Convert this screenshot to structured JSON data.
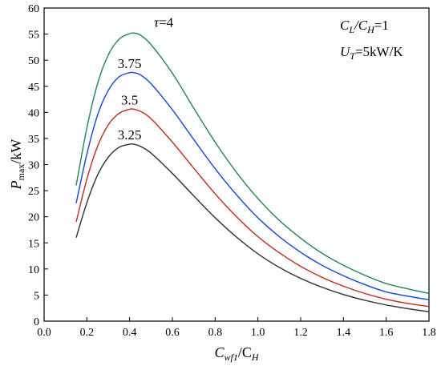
{
  "chart_data": {
    "type": "line",
    "xlabel": {
      "main": "C",
      "sub": "wf1",
      "rest": "/C",
      "rest_sub": "H"
    },
    "ylabel": {
      "main": "P",
      "sub": "max",
      "rest": "/kW"
    },
    "xlim": [
      0.0,
      1.8
    ],
    "ylim": [
      0,
      60
    ],
    "xticks": [
      "0.0",
      "0.2",
      "0.4",
      "0.6",
      "0.8",
      "1.0",
      "1.2",
      "1.4",
      "1.6",
      "1.8"
    ],
    "yticks": [
      "0",
      "5",
      "10",
      "15",
      "20",
      "25",
      "30",
      "35",
      "40",
      "45",
      "50",
      "55",
      "60"
    ],
    "grid": false,
    "annotations": {
      "ratio": {
        "main": "C",
        "sub": "L",
        "mid": "/C",
        "sub2": "H",
        "rest": "=1"
      },
      "ut": {
        "main": "U",
        "sub": "T",
        "rest": "=5kW/K"
      }
    },
    "series": [
      {
        "name": "τ=4",
        "label_prefix": "τ",
        "label_rest": "=4",
        "color": "#2e8b57",
        "x": [
          0.15,
          0.2,
          0.25,
          0.3,
          0.35,
          0.4,
          0.42,
          0.45,
          0.5,
          0.6,
          0.7,
          0.8,
          0.9,
          1.0,
          1.1,
          1.2,
          1.3,
          1.4,
          1.5,
          1.6,
          1.7,
          1.8
        ],
        "y": [
          26.0,
          37.0,
          45.5,
          51.0,
          54.0,
          55.1,
          55.2,
          54.8,
          53.0,
          47.5,
          40.8,
          34.3,
          28.5,
          23.5,
          19.3,
          15.9,
          13.0,
          10.7,
          8.8,
          7.2,
          6.2,
          5.3
        ]
      },
      {
        "name": "3.75",
        "label_prefix": "",
        "label_rest": "3.75",
        "color": "#1f4fd6",
        "x": [
          0.15,
          0.2,
          0.25,
          0.3,
          0.35,
          0.4,
          0.42,
          0.45,
          0.5,
          0.6,
          0.7,
          0.8,
          0.9,
          1.0,
          1.1,
          1.2,
          1.3,
          1.4,
          1.5,
          1.6,
          1.7,
          1.8
        ],
        "y": [
          22.6,
          32.0,
          39.5,
          44.2,
          46.8,
          47.6,
          47.6,
          47.2,
          45.5,
          40.5,
          34.8,
          29.2,
          24.2,
          19.8,
          16.2,
          13.2,
          10.7,
          8.7,
          7.0,
          5.6,
          4.8,
          4.1
        ]
      },
      {
        "name": "3.5",
        "label_prefix": "",
        "label_rest": "3.5",
        "color": "#c0392b",
        "x": [
          0.15,
          0.2,
          0.25,
          0.3,
          0.35,
          0.4,
          0.42,
          0.45,
          0.5,
          0.6,
          0.7,
          0.8,
          0.9,
          1.0,
          1.1,
          1.2,
          1.3,
          1.4,
          1.5,
          1.6,
          1.7,
          1.8
        ],
        "y": [
          19.0,
          27.2,
          33.5,
          37.6,
          39.8,
          40.6,
          40.6,
          40.2,
          38.8,
          34.3,
          29.3,
          24.4,
          20.0,
          16.2,
          13.1,
          10.5,
          8.4,
          6.7,
          5.3,
          4.2,
          3.4,
          2.8
        ]
      },
      {
        "name": "3.25",
        "label_prefix": "",
        "label_rest": "3.25",
        "color": "#3a3a3a",
        "x": [
          0.15,
          0.2,
          0.25,
          0.3,
          0.35,
          0.4,
          0.42,
          0.45,
          0.5,
          0.6,
          0.7,
          0.8,
          0.9,
          1.0,
          1.1,
          1.2,
          1.3,
          1.4,
          1.5,
          1.6,
          1.7,
          1.8
        ],
        "y": [
          16.0,
          22.7,
          28.0,
          31.4,
          33.3,
          33.9,
          33.9,
          33.5,
          32.2,
          28.3,
          24.0,
          19.8,
          16.1,
          12.9,
          10.3,
          8.2,
          6.5,
          5.1,
          4.0,
          3.1,
          2.4,
          1.8
        ]
      }
    ]
  }
}
